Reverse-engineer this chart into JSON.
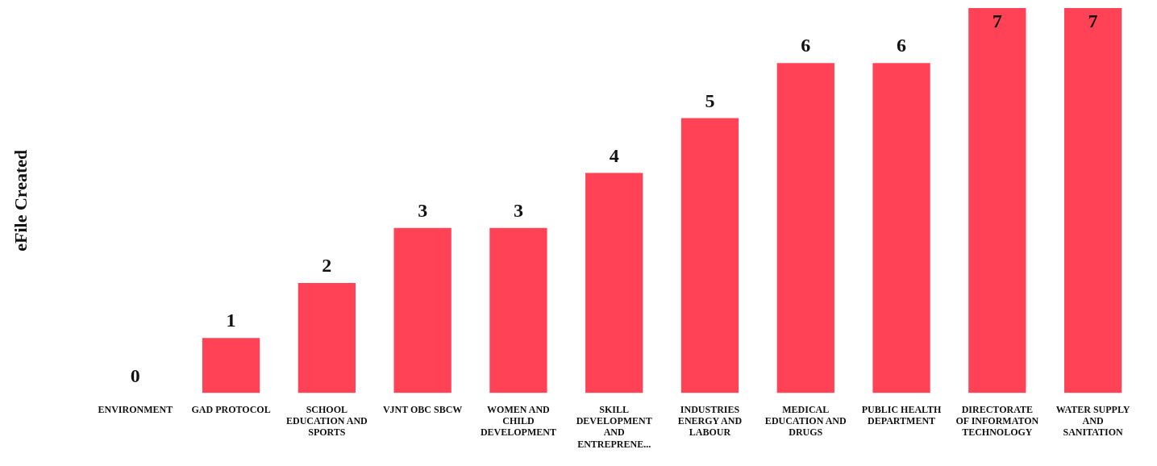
{
  "chart_data": {
    "type": "bar",
    "ylabel": "eFile Created",
    "categories": [
      "ENVIRONMENT",
      "GAD PROTOCOL",
      "SCHOOL EDUCATION AND SPORTS",
      "VJNT OBC SBCW",
      "WOMEN AND CHILD DEVELOPMENT",
      "SKILL DEVELOPMENT AND ENTREPRENE...",
      "INDUSTRIES ENERGY AND LABOUR",
      "MEDICAL EDUCATION AND DRUGS",
      "PUBLIC HEALTH DEPARTMENT",
      "DIRECTORATE OF INFORMATON TECHNOLOGY",
      "WATER SUPPLY AND SANITATION"
    ],
    "values": [
      0,
      1,
      2,
      3,
      3,
      4,
      5,
      6,
      6,
      7,
      7
    ],
    "color": "#ff4255",
    "ylim": [
      0,
      7
    ],
    "tick_labels": "x",
    "data_labels": true,
    "grid": false,
    "legend": false
  }
}
